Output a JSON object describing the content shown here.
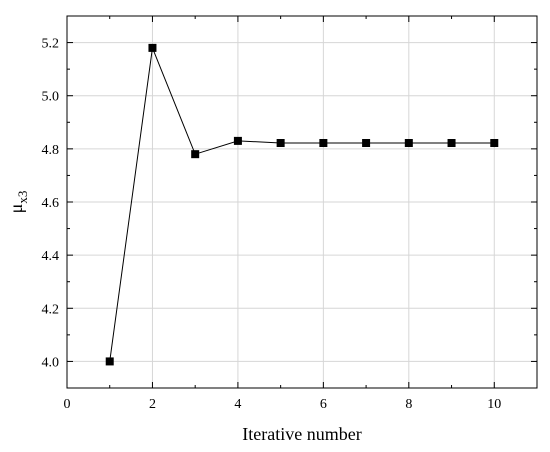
{
  "chart_data": {
    "type": "line",
    "title": "",
    "xlabel": "Iterative number",
    "ylabel": {
      "base": "μ",
      "subscript": "x3"
    },
    "xlim": [
      0,
      11
    ],
    "ylim": [
      3.9,
      5.3
    ],
    "x_ticks": [
      0,
      2,
      4,
      6,
      8,
      10
    ],
    "y_ticks": [
      4.0,
      4.2,
      4.4,
      4.6,
      4.8,
      5.0,
      5.2
    ],
    "grid": true,
    "marker": "square",
    "series": [
      {
        "x": [
          1,
          2,
          3,
          4,
          5,
          6,
          7,
          8,
          9,
          10
        ],
        "values": [
          4.0,
          5.18,
          4.78,
          4.83,
          4.822,
          4.822,
          4.822,
          4.822,
          4.822,
          4.822
        ]
      }
    ]
  }
}
